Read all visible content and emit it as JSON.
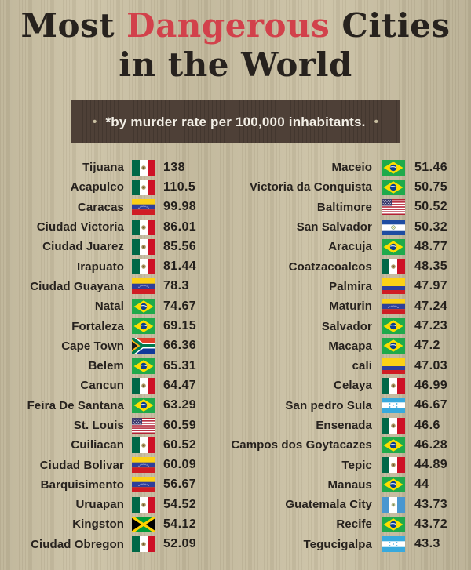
{
  "title": {
    "part1": "Most ",
    "highlight": "Dangerous",
    "part2": " Cities",
    "line2": "in the World"
  },
  "subtitle": {
    "bullet": "•",
    "text": "*by murder rate per 100,000 inhabitants."
  },
  "colors": {
    "background": "#cbc1a4",
    "accent_red": "#d2414b",
    "banner_brown": "#4e4037",
    "text_dark": "#27221e"
  },
  "chart_data": {
    "type": "table",
    "title": "Most Dangerous Cities in the World",
    "subtitle": "*by murder rate per 100,000 inhabitants.",
    "unit": "murders per 100,000 inhabitants",
    "layout": "two-column ranked list, descending murder rate, flag icon between city and value",
    "columns": [
      "city",
      "country_flag",
      "murder_rate"
    ],
    "rows": [
      [
        "Tijuana",
        "mexico",
        138
      ],
      [
        "Acapulco",
        "mexico",
        110.5
      ],
      [
        "Caracas",
        "venezuela",
        99.98
      ],
      [
        "Ciudad Victoria",
        "mexico",
        86.01
      ],
      [
        "Ciudad Juarez",
        "mexico",
        85.56
      ],
      [
        "Irapuato",
        "mexico",
        81.44
      ],
      [
        "Ciudad Guayana",
        "venezuela",
        78.3
      ],
      [
        "Natal",
        "brazil",
        74.67
      ],
      [
        "Fortaleza",
        "brazil",
        69.15
      ],
      [
        "Cape Town",
        "south-africa",
        66.36
      ],
      [
        "Belem",
        "brazil",
        65.31
      ],
      [
        "Cancun",
        "mexico",
        64.47
      ],
      [
        "Feira De Santana",
        "brazil",
        63.29
      ],
      [
        "St. Louis",
        "usa",
        60.59
      ],
      [
        "Cuiliacan",
        "mexico",
        60.52
      ],
      [
        "Ciudad Bolivar",
        "venezuela",
        60.09
      ],
      [
        "Barquisimento",
        "venezuela",
        56.67
      ],
      [
        "Uruapan",
        "mexico",
        54.52
      ],
      [
        "Kingston",
        "jamaica",
        54.12
      ],
      [
        "Ciudad Obregon",
        "mexico",
        52.09
      ],
      [
        "Maceio",
        "brazil",
        51.46
      ],
      [
        "Victoria da Conquista",
        "brazil",
        50.75
      ],
      [
        "Baltimore",
        "usa",
        50.52
      ],
      [
        "San Salvador",
        "el-salvador",
        50.32
      ],
      [
        "Aracuja",
        "brazil",
        48.77
      ],
      [
        "Coatzacoalcos",
        "mexico",
        48.35
      ],
      [
        "Palmira",
        "colombia",
        47.97
      ],
      [
        "Maturin",
        "venezuela",
        47.24
      ],
      [
        "Salvador",
        "brazil",
        47.23
      ],
      [
        "Macapa",
        "brazil",
        47.2
      ],
      [
        "cali",
        "colombia",
        47.03
      ],
      [
        "Celaya",
        "mexico",
        46.99
      ],
      [
        "San pedro Sula",
        "honduras",
        46.67
      ],
      [
        "Ensenada",
        "mexico",
        46.6
      ],
      [
        "Campos dos Goytacazes",
        "brazil",
        46.28
      ],
      [
        "Tepic",
        "mexico",
        44.89
      ],
      [
        "Manaus",
        "brazil",
        44
      ],
      [
        "Guatemala City",
        "guatemala",
        43.73
      ],
      [
        "Recife",
        "brazil",
        43.72
      ],
      [
        "Tegucigalpa",
        "honduras",
        43.3
      ]
    ]
  }
}
